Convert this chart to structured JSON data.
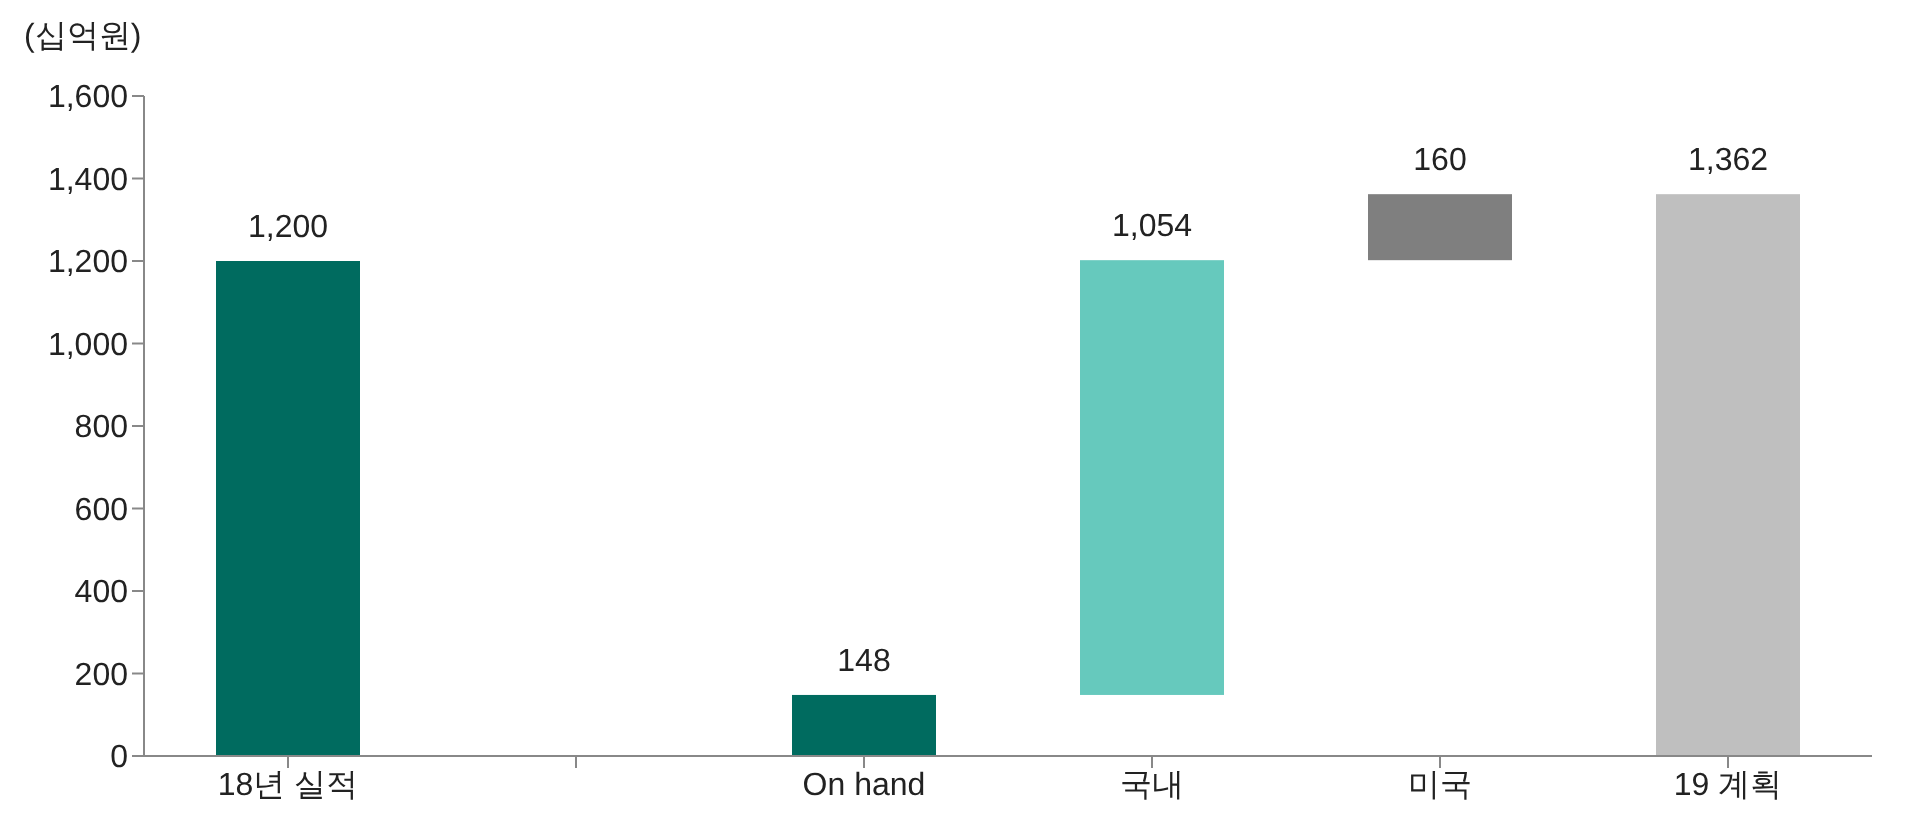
{
  "chart_data": {
    "type": "bar",
    "ylabel": "(십억원)",
    "categories": [
      "18년 실적",
      null,
      "On hand",
      "국내",
      "미국",
      "19 계획"
    ],
    "values": [
      1200,
      null,
      148,
      1054,
      160,
      1362
    ],
    "base": [
      0,
      null,
      0,
      148,
      1202,
      0
    ],
    "colors": [
      "#006b5f",
      null,
      "#006b5f",
      "#66c9bd",
      "#7f7f7f",
      "#bfbfbf"
    ],
    "value_labels": [
      "1,200",
      null,
      "148",
      "1,054",
      "160",
      "1,362"
    ],
    "ylim": [
      0,
      1600
    ],
    "yticks": [
      0,
      200,
      400,
      600,
      800,
      {
        "value": 1000,
        "label": "1,000"
      },
      {
        "value": 1200,
        "label": "1,200"
      },
      {
        "value": 1400,
        "label": "1,400"
      },
      {
        "value": 1600,
        "label": "1,600"
      }
    ]
  }
}
